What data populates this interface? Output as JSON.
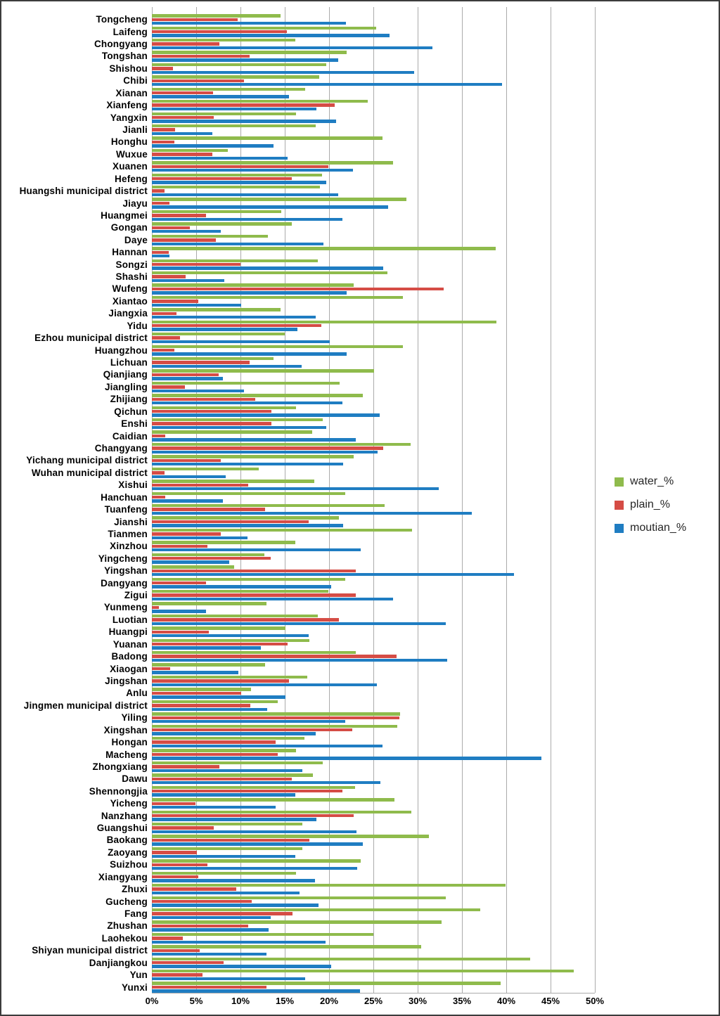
{
  "chart_data": {
    "type": "bar",
    "orientation": "horizontal",
    "title": "",
    "xlabel": "",
    "ylabel": "",
    "x_axis": {
      "min": 0,
      "max": 50,
      "tick_step": 5,
      "tick_labels": [
        "0%",
        "5%",
        "10%",
        "15%",
        "20%",
        "25%",
        "30%",
        "35%",
        "40%",
        "45%",
        "50%"
      ],
      "grid": true,
      "unit": "percent"
    },
    "legend": {
      "position": "right",
      "entries": [
        "water_%",
        "plain_%",
        "moutian_%"
      ]
    },
    "categories": [
      "Tongcheng",
      "Laifeng",
      "Chongyang",
      "Tongshan",
      "Shishou",
      "Chibi",
      "Xianan",
      "Xianfeng",
      "Yangxin",
      "Jianli",
      "Honghu",
      "Wuxue",
      "Xuanen",
      "Hefeng",
      "Huangshi municipal district",
      "Jiayu",
      "Huangmei",
      "Gongan",
      "Daye",
      "Hannan",
      "Songzi",
      "Shashi",
      "Wufeng",
      "Xiantao",
      "Jiangxia",
      "Yidu",
      "Ezhou municipal district",
      "Huangzhou",
      "Lichuan",
      "Qianjiang",
      "Jiangling",
      "Zhijiang",
      "Qichun",
      "Enshi",
      "Caidian",
      "Changyang",
      "Yichang municipal district",
      "Wuhan municipal district",
      "Xishui",
      "Hanchuan",
      "Tuanfeng",
      "Jianshi",
      "Tianmen",
      "Xinzhou",
      "Yingcheng",
      "Yingshan",
      "Dangyang",
      "Zigui",
      "Yunmeng",
      "Luotian",
      "Huangpi",
      "Yuanan",
      "Badong",
      "Xiaogan",
      "Jingshan",
      "Anlu",
      "Jingmen municipal district",
      "Yiling",
      "Xingshan",
      "Hongan",
      "Macheng",
      "Zhongxiang",
      "Dawu",
      "Shennongjia",
      "Yicheng",
      "Nanzhang",
      "Guangshui",
      "Baokang",
      "Zaoyang",
      "Suizhou",
      "Xiangyang",
      "Zhuxi",
      "Gucheng",
      "Fang",
      "Zhushan",
      "Laohekou",
      "Shiyan municipal district",
      "Danjiangkou",
      "Yun",
      "Yunxi"
    ],
    "series": [
      {
        "name": "water_%",
        "color": "#8FBB4C",
        "values": [
          14.5,
          25.3,
          16.2,
          22.0,
          19.7,
          18.9,
          17.3,
          24.4,
          16.3,
          18.5,
          26.0,
          8.6,
          27.2,
          19.2,
          19.0,
          28.7,
          14.6,
          15.8,
          13.1,
          38.8,
          18.7,
          26.6,
          22.8,
          28.3,
          14.5,
          38.9,
          15.0,
          28.3,
          13.7,
          25.1,
          21.2,
          23.8,
          16.3,
          19.3,
          18.1,
          29.2,
          22.8,
          12.1,
          18.3,
          21.8,
          26.3,
          21.1,
          29.4,
          16.2,
          12.7,
          9.3,
          21.8,
          19.9,
          12.9,
          18.7,
          15.1,
          17.8,
          23.0,
          12.8,
          17.5,
          11.2,
          14.2,
          28.0,
          27.7,
          17.2,
          16.3,
          19.3,
          18.2,
          22.9,
          27.4,
          29.3,
          17.0,
          31.3,
          17.0,
          23.6,
          16.3,
          39.9,
          33.2,
          37.1,
          32.7,
          25.0,
          30.4,
          42.7,
          47.6,
          39.4
        ]
      },
      {
        "name": "plain_%",
        "color": "#D54C45",
        "values": [
          9.7,
          15.2,
          7.6,
          11.0,
          2.4,
          10.4,
          6.9,
          20.6,
          7.0,
          2.6,
          2.5,
          6.8,
          19.9,
          15.8,
          1.4,
          2.0,
          6.1,
          4.3,
          7.2,
          1.9,
          10.0,
          3.8,
          32.9,
          5.2,
          2.8,
          19.1,
          3.2,
          2.5,
          11.0,
          7.5,
          3.7,
          11.7,
          13.5,
          13.5,
          1.5,
          26.1,
          7.8,
          1.4,
          10.9,
          1.5,
          12.8,
          17.7,
          7.8,
          6.3,
          13.4,
          23.0,
          6.1,
          23.0,
          0.8,
          21.1,
          6.4,
          15.3,
          27.6,
          2.1,
          15.5,
          10.1,
          11.1,
          27.9,
          22.6,
          14.0,
          14.2,
          7.6,
          15.8,
          21.5,
          4.9,
          22.8,
          7.0,
          17.8,
          5.1,
          6.3,
          5.2,
          9.5,
          11.3,
          15.9,
          10.9,
          3.5,
          5.4,
          8.1,
          5.7,
          12.9
        ]
      },
      {
        "name": "moutian_%",
        "color": "#1F7DC2",
        "values": [
          21.9,
          26.8,
          31.7,
          21.0,
          29.6,
          39.5,
          15.5,
          18.6,
          20.8,
          6.8,
          13.7,
          15.3,
          22.7,
          19.7,
          21.0,
          26.7,
          21.5,
          7.8,
          19.4,
          2.0,
          26.1,
          8.2,
          22.0,
          10.1,
          18.5,
          16.4,
          20.1,
          22.0,
          16.9,
          8.0,
          10.4,
          21.5,
          25.7,
          19.7,
          23.0,
          25.5,
          21.6,
          8.3,
          32.4,
          8.0,
          36.1,
          21.6,
          10.8,
          23.6,
          8.7,
          40.9,
          20.2,
          27.2,
          6.1,
          33.2,
          17.7,
          12.3,
          33.3,
          9.8,
          25.4,
          15.1,
          13.0,
          21.8,
          18.5,
          26.0,
          44.0,
          17.0,
          25.8,
          16.2,
          14.0,
          18.6,
          23.1,
          23.8,
          16.2,
          23.2,
          18.4,
          16.7,
          18.8,
          13.4,
          13.2,
          19.6,
          12.9,
          20.2,
          17.3,
          23.5
        ]
      }
    ]
  },
  "colors": {
    "background": "#FFFFFF",
    "gridline": "#ABABAB",
    "canvas_border": "#3C3C3C",
    "label_text": "#000000",
    "legend_text": "#262626"
  }
}
